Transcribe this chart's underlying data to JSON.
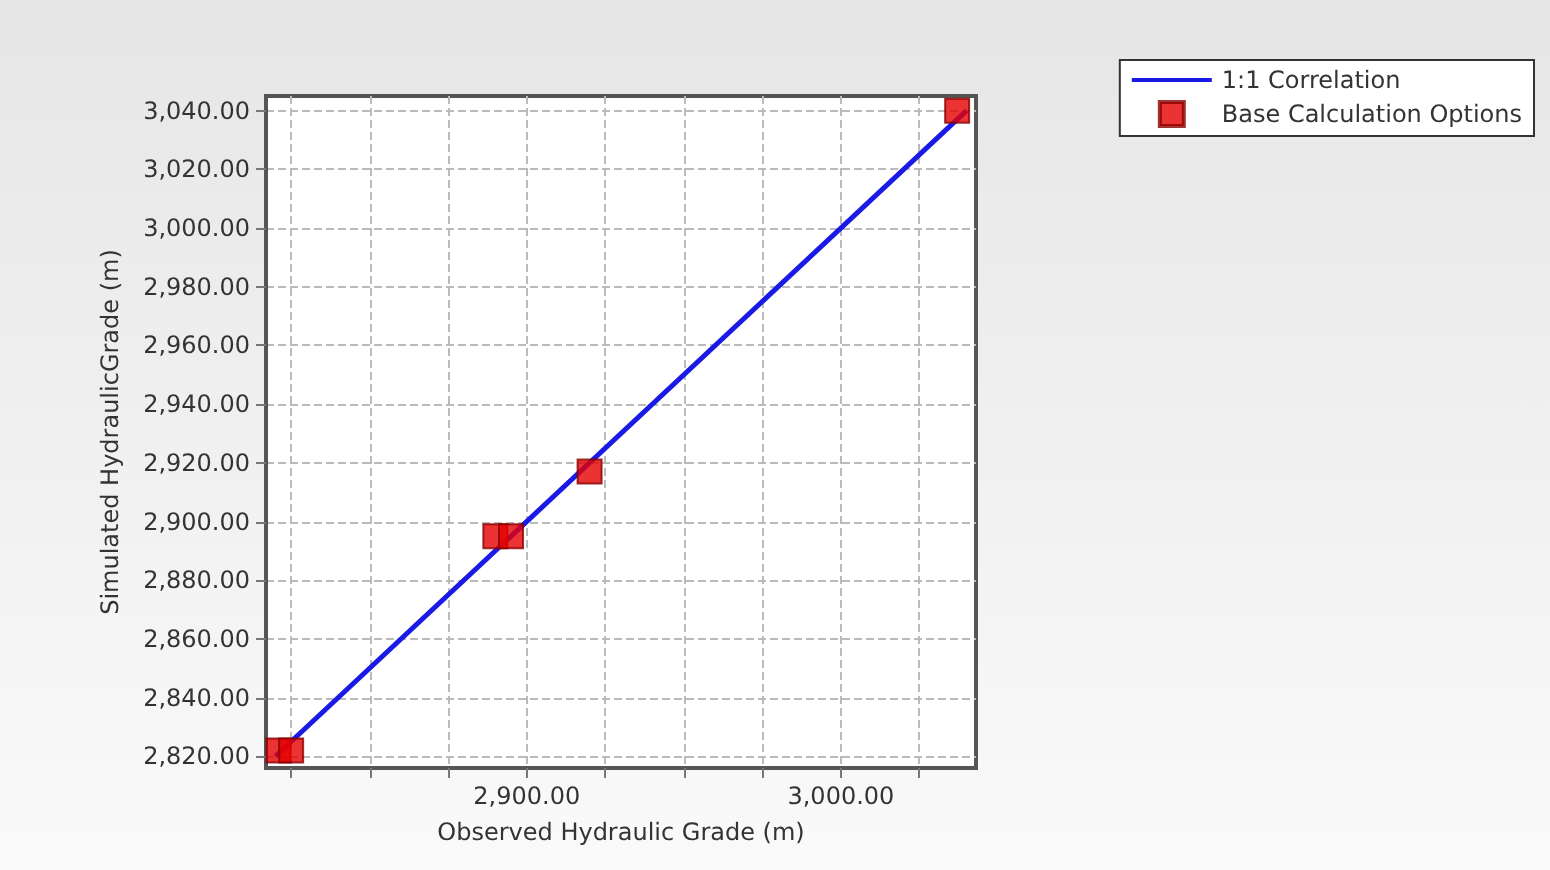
{
  "chart_data": {
    "type": "scatter",
    "xlabel": "Observed Hydraulic Grade (m)",
    "ylabel": "Simulated HydraulicGrade (m)",
    "xlim": [
      2817,
      3043
    ],
    "ylim": [
      2816,
      3045
    ],
    "xticks": [
      {
        "value": 2825,
        "label": null
      },
      {
        "value": 2850,
        "label": null
      },
      {
        "value": 2875,
        "label": null
      },
      {
        "value": 2900,
        "label": "2,900.00"
      },
      {
        "value": 2925,
        "label": null
      },
      {
        "value": 2950,
        "label": null
      },
      {
        "value": 2975,
        "label": null
      },
      {
        "value": 3000,
        "label": "3,000.00"
      },
      {
        "value": 3025,
        "label": null
      }
    ],
    "yticks": [
      {
        "value": 2820,
        "label": "2,820.00"
      },
      {
        "value": 2840,
        "label": "2,840.00"
      },
      {
        "value": 2860,
        "label": "2,860.00"
      },
      {
        "value": 2880,
        "label": "2,880.00"
      },
      {
        "value": 2900,
        "label": "2,900.00"
      },
      {
        "value": 2920,
        "label": "2,920.00"
      },
      {
        "value": 2940,
        "label": "2,940.00"
      },
      {
        "value": 2960,
        "label": "2,960.00"
      },
      {
        "value": 2980,
        "label": "2,980.00"
      },
      {
        "value": 3000,
        "label": "3,000.00"
      },
      {
        "value": 3020,
        "label": "3,020.00"
      },
      {
        "value": 3040,
        "label": "3,040.00"
      }
    ],
    "series": [
      {
        "name": "1:1 Correlation",
        "type": "line",
        "color": "#1a1ae6",
        "marker": "none",
        "line_style": "solid",
        "x": [
          2820,
          3040
        ],
        "values": [
          2820,
          3040
        ]
      },
      {
        "name": "Base Calculation Options",
        "color": "#e60000",
        "marker": "square",
        "x": [
          2821,
          2825,
          2890,
          2895,
          2920,
          3037
        ],
        "values": [
          2822,
          2822,
          2895,
          2895,
          2917,
          3040
        ]
      }
    ],
    "grid": true,
    "legend": "top right"
  }
}
